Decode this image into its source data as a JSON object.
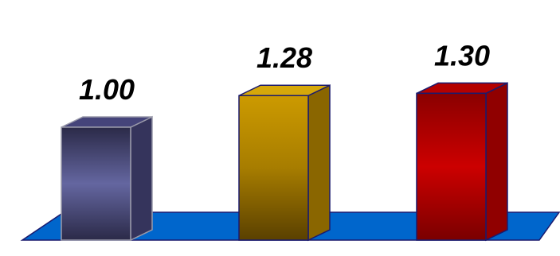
{
  "chart_data": {
    "type": "bar",
    "categories": [
      "",
      "",
      ""
    ],
    "values": [
      1.0,
      1.28,
      1.3
    ],
    "data_labels": [
      "1.00",
      "1.28",
      "1.30"
    ],
    "ylim": [
      0,
      1.6
    ],
    "grid": false,
    "legend": "none",
    "colors": {
      "bars": [
        {
          "front_top": "#2b2a48",
          "front_mid": "#6466a0",
          "front_bottom": "#2b2a48",
          "top": "#45447a",
          "side": "#35345c",
          "edge": "#9a9aaa"
        },
        {
          "front_top": "#cc9a00",
          "front_mid": "#a77d00",
          "front_bottom": "#5a4000",
          "top": "#d6a80a",
          "side": "#8a6600",
          "edge": "#1a1a6e"
        },
        {
          "front_top": "#8a0000",
          "front_mid": "#cc0000",
          "front_bottom": "#7a0000",
          "top": "#b40000",
          "side": "#900000",
          "edge": "#1a1a6e"
        }
      ],
      "floor": "#0066cc",
      "floor_edge": "#1a1a6e"
    }
  }
}
